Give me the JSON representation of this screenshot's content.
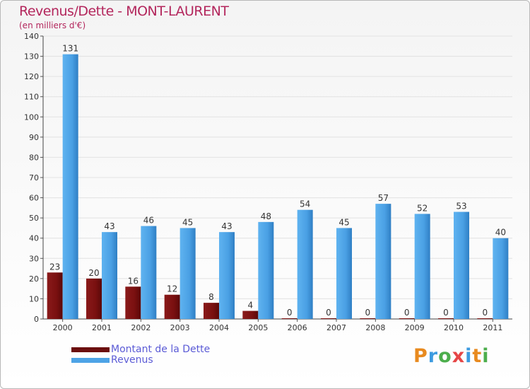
{
  "chart_data": {
    "type": "bar",
    "title": "Revenus/Dette - MONT-LAURENT",
    "subtitle": "(en milliers d'€)",
    "xlabel": "",
    "ylabel": "",
    "ylim": [
      0,
      140
    ],
    "yticks": [
      0,
      10,
      20,
      30,
      40,
      50,
      60,
      70,
      80,
      90,
      100,
      110,
      120,
      130,
      140
    ],
    "categories": [
      "2000",
      "2001",
      "2002",
      "2003",
      "2004",
      "2005",
      "2006",
      "2007",
      "2008",
      "2009",
      "2010",
      "2011"
    ],
    "series": [
      {
        "name": "Montant de la Dette",
        "color": "#7a1010",
        "values": [
          23,
          20,
          16,
          12,
          8,
          4,
          0,
          0,
          0,
          0,
          0,
          0
        ]
      },
      {
        "name": "Revenus",
        "color": "#4da3e6",
        "values": [
          131,
          43,
          46,
          45,
          43,
          48,
          54,
          45,
          57,
          52,
          53,
          40
        ]
      }
    ],
    "legend_position": "bottom-left",
    "grid": true
  },
  "branding": {
    "logo_text": "Proxiti"
  },
  "colors": {
    "title": "#b3265c",
    "legend_text": "#5b5bd6"
  }
}
